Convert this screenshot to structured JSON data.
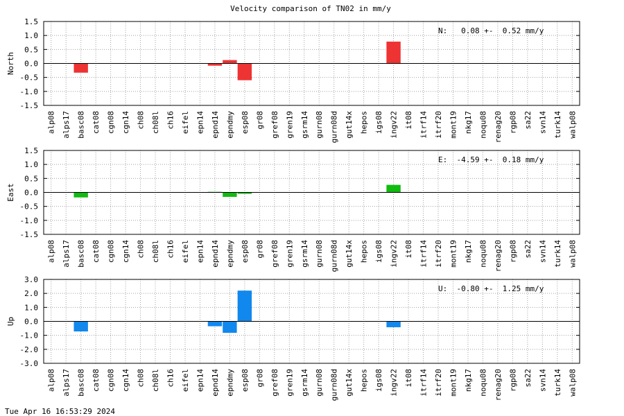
{
  "title": "Velocity comparison of TN02 in mm/y",
  "footer": "Tue Apr 16 16:53:29 2024",
  "categories": [
    "alp08",
    "alps17",
    "basc08",
    "cat08",
    "cgn08",
    "cgn14",
    "ch08",
    "ch08l",
    "ch16",
    "eifel",
    "epn14",
    "epnd14",
    "epndmy",
    "esp08",
    "gr08",
    "gref08",
    "gren19",
    "gsrm14",
    "gurn08",
    "gurn08d",
    "gut14x",
    "hepos",
    "igs08",
    "ingv22",
    "it08",
    "itrf14",
    "itrf20",
    "mont19",
    "nkg17",
    "noqu08",
    "renag20",
    "rgp08",
    "sa22",
    "svn14",
    "turk14",
    "walp08"
  ],
  "chart_data": [
    {
      "type": "bar",
      "ylabel": "North",
      "ylim": [
        -1.5,
        1.5
      ],
      "yticks": [
        "1.5",
        "1.0",
        "0.5",
        "0.0",
        "-0.5",
        "-1.0",
        "-1.5"
      ],
      "color": "#ee3333",
      "annotation": "N:   0.08 +-  0.52 mm/y",
      "grid": true,
      "values": [
        0,
        0,
        -0.33,
        0,
        0,
        0,
        0,
        0,
        0,
        0,
        0,
        -0.08,
        0.12,
        -0.6,
        0,
        0,
        0,
        0,
        0,
        0,
        0,
        0,
        0,
        0.78,
        0,
        0,
        0,
        0,
        0,
        0,
        0,
        0,
        0,
        0,
        0,
        0
      ]
    },
    {
      "type": "bar",
      "ylabel": "East",
      "ylim": [
        -1.5,
        1.5
      ],
      "yticks": [
        "1.5",
        "1.0",
        "0.5",
        "0.0",
        "-0.5",
        "-1.0",
        "-1.5"
      ],
      "color": "#11bb11",
      "annotation": "E:  -4.59 +-  0.18 mm/y",
      "grid": true,
      "values": [
        0,
        0,
        -0.18,
        0,
        0,
        0,
        0,
        0,
        0,
        0,
        0,
        0.02,
        -0.16,
        -0.05,
        0,
        0,
        0,
        0,
        0,
        0,
        0,
        0,
        0,
        0.27,
        0,
        0,
        0,
        0,
        0,
        0,
        0,
        0,
        0,
        0,
        0,
        0
      ]
    },
    {
      "type": "bar",
      "ylabel": "Up",
      "ylim": [
        -3.0,
        3.0
      ],
      "yticks": [
        "3.0",
        "2.0",
        "1.0",
        "0.0",
        "-1.0",
        "-2.0",
        "-3.0"
      ],
      "color": "#1188ee",
      "annotation": "U:  -0.80 +-  1.25 mm/y",
      "grid": true,
      "values": [
        0,
        0,
        -0.72,
        0,
        0,
        0,
        0,
        0,
        0,
        0,
        0,
        -0.35,
        -0.82,
        2.2,
        0,
        0,
        0,
        0,
        0,
        0,
        0,
        0,
        0,
        -0.42,
        0,
        0,
        0,
        0,
        0,
        0,
        0,
        0,
        0,
        0,
        0,
        0
      ]
    }
  ]
}
